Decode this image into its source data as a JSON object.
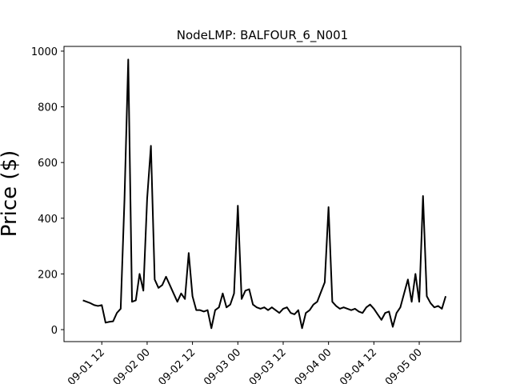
{
  "chart_data": {
    "type": "line",
    "title": "NodeLMP: BALFOUR_6_N001",
    "y_label": "Price ($)",
    "x": [
      "09-01 07",
      "09-01 08",
      "09-01 09",
      "09-01 10",
      "09-01 11",
      "09-01 12",
      "09-01 13",
      "09-01 14",
      "09-01 15",
      "09-01 16",
      "09-01 17",
      "09-01 18",
      "09-01 19",
      "09-01 20",
      "09-01 21",
      "09-01 22",
      "09-01 23",
      "09-02 00",
      "09-02 01",
      "09-02 02",
      "09-02 03",
      "09-02 04",
      "09-02 05",
      "09-02 06",
      "09-02 07",
      "09-02 08",
      "09-02 09",
      "09-02 10",
      "09-02 11",
      "09-02 12",
      "09-02 13",
      "09-02 14",
      "09-02 15",
      "09-02 16",
      "09-02 17",
      "09-02 18",
      "09-02 19",
      "09-02 20",
      "09-02 21",
      "09-02 22",
      "09-02 23",
      "09-03 00",
      "09-03 01",
      "09-03 02",
      "09-03 03",
      "09-03 04",
      "09-03 05",
      "09-03 06",
      "09-03 07",
      "09-03 08",
      "09-03 09",
      "09-03 10",
      "09-03 11",
      "09-03 12",
      "09-03 13",
      "09-03 14",
      "09-03 15",
      "09-03 16",
      "09-03 17",
      "09-03 18",
      "09-03 19",
      "09-03 20",
      "09-03 21",
      "09-03 22",
      "09-03 23",
      "09-04 00",
      "09-04 01",
      "09-04 02",
      "09-04 03",
      "09-04 04",
      "09-04 05",
      "09-04 06",
      "09-04 07",
      "09-04 08",
      "09-04 09",
      "09-04 10",
      "09-04 11",
      "09-04 12",
      "09-04 13",
      "09-04 14",
      "09-04 15",
      "09-04 16",
      "09-04 17",
      "09-04 18",
      "09-04 19",
      "09-04 20",
      "09-04 21",
      "09-04 22",
      "09-04 23",
      "09-05 00",
      "09-05 01",
      "09-05 02",
      "09-05 03",
      "09-05 04",
      "09-05 05",
      "09-05 06",
      "09-05 07"
    ],
    "series": [
      {
        "color": "#000000",
        "values": [
          105,
          100,
          95,
          88,
          85,
          88,
          25,
          28,
          30,
          60,
          75,
          465,
          970,
          100,
          105,
          200,
          140,
          470,
          660,
          180,
          150,
          160,
          190,
          160,
          130,
          100,
          130,
          110,
          275,
          120,
          70,
          70,
          65,
          70,
          5,
          70,
          80,
          130,
          80,
          90,
          130,
          445,
          110,
          140,
          145,
          90,
          80,
          75,
          80,
          70,
          80,
          70,
          60,
          75,
          80,
          60,
          55,
          70,
          5,
          60,
          70,
          90,
          100,
          135,
          170,
          440,
          100,
          85,
          75,
          80,
          75,
          70,
          75,
          65,
          60,
          80,
          90,
          75,
          55,
          35,
          60,
          65,
          10,
          60,
          80,
          130,
          180,
          100,
          200,
          100,
          480,
          120,
          95,
          80,
          85,
          75,
          120
        ]
      }
    ],
    "xlim": [
      "09-01 02",
      "09-05 11"
    ],
    "xticks": [
      "09-01 12",
      "09-02 00",
      "09-02 12",
      "09-03 00",
      "09-03 12",
      "09-04 00",
      "09-04 12",
      "09-05 00"
    ],
    "ylim": [
      -43,
      1017
    ],
    "yticks": [
      0,
      200,
      400,
      600,
      800,
      1000
    ]
  }
}
